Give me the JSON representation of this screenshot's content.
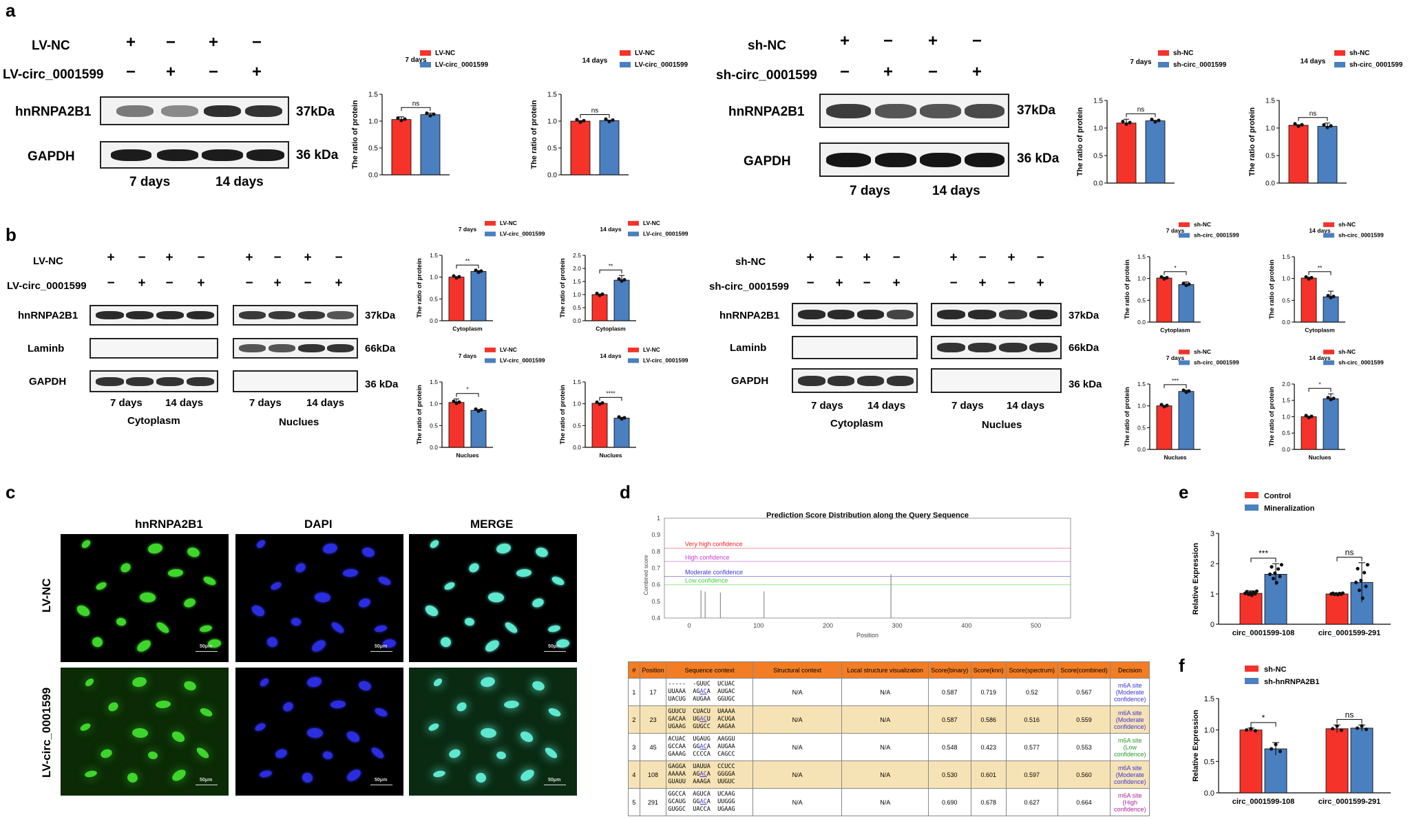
{
  "panels": {
    "a": "a",
    "b": "b",
    "c": "c",
    "d": "d",
    "e": "e",
    "f": "f"
  },
  "colors": {
    "red": "#f5332a",
    "blue": "#4a7fc0",
    "band_dark": "#1c1c1c"
  },
  "panel_a": {
    "left": {
      "row1": "LV-NC",
      "row2": "LV-circ_0001599",
      "row1_signs": [
        "+",
        "−",
        "+",
        "−"
      ],
      "row2_signs": [
        "−",
        "+",
        "−",
        "+"
      ],
      "blot1": "hnRNPA2B1",
      "blot1_kda": "37kDa",
      "blot2": "GAPDH",
      "blot2_kda": "36 kDa",
      "day1": "7 days",
      "day2": "14 days"
    },
    "right": {
      "row1": "sh-NC",
      "row2": "sh-circ_0001599",
      "row1_signs": [
        "+",
        "−",
        "+",
        "−"
      ],
      "row2_signs": [
        "−",
        "+",
        "−",
        "+"
      ],
      "blot1": "hnRNPA2B1",
      "blot1_kda": "37kDa",
      "blot2": "GAPDH",
      "blot2_kda": "36 kDa",
      "day1": "7 days",
      "day2": "14 days"
    }
  },
  "panel_b": {
    "left": {
      "row1": "LV-NC",
      "row2": "LV-circ_0001599",
      "row1_signs": [
        "+",
        "−",
        "+",
        "−",
        "+",
        "−",
        "+",
        "−"
      ],
      "row2_signs": [
        "−",
        "+",
        "−",
        "+",
        "−",
        "+",
        "−",
        "+"
      ],
      "blot1": "hnRNPA2B1",
      "blot1_kda": "37kDa",
      "blot2": "Laminb",
      "blot2_kda": "66kDa",
      "blot3": "GAPDH",
      "blot3_kda": "36 kDa",
      "day1": "7 days",
      "day2": "14 days",
      "day3": "7 days",
      "day4": "14 days",
      "frac1": "Cytoplasm",
      "frac2": "Nuclues"
    },
    "right": {
      "row1": "sh-NC",
      "row2": "sh-circ_0001599",
      "row1_signs": [
        "+",
        "−",
        "+",
        "−",
        "+",
        "−",
        "+",
        "−"
      ],
      "row2_signs": [
        "−",
        "+",
        "−",
        "+",
        "−",
        "+",
        "−",
        "+"
      ],
      "blot1": "hnRNPA2B1",
      "blot1_kda": "37kDa",
      "blot2": "Laminb",
      "blot2_kda": "66kDa",
      "blot3": "GAPDH",
      "blot3_kda": "36 kDa",
      "day1": "7 days",
      "day2": "14 days",
      "day3": "7 days",
      "day4": "14 days",
      "frac1": "Cytoplasm",
      "frac2": "Nuclues"
    }
  },
  "panel_c": {
    "cols": [
      "hnRNPA2B1",
      "DAPI",
      "MERGE"
    ],
    "rows": [
      "LV-NC",
      "LV-circ_0001599"
    ],
    "scale": "50μm"
  },
  "panel_d": {
    "title": "Prediction Score Distribution along the Query Sequence",
    "ylabel": "Combined score",
    "xlabel": "Position",
    "yticks": [
      "0.4",
      "0.5",
      "0.6",
      "0.7",
      "0.8",
      "0.9",
      "1"
    ],
    "xticks": [
      "0",
      "100",
      "200",
      "300",
      "400",
      "500"
    ],
    "thresholds": [
      {
        "label": "Very high confidence",
        "value": 0.82,
        "color": "#e8222a"
      },
      {
        "label": "High confidence",
        "value": 0.74,
        "color": "#c23cd6"
      },
      {
        "label": "Moderate confidence",
        "value": 0.65,
        "color": "#3d35d8"
      },
      {
        "label": "Low confidence",
        "value": 0.6,
        "color": "#3bd13b"
      }
    ],
    "bars": [
      {
        "x": 17,
        "y": 0.567
      },
      {
        "x": 23,
        "y": 0.559
      },
      {
        "x": 45,
        "y": 0.553
      },
      {
        "x": 108,
        "y": 0.56
      },
      {
        "x": 291,
        "y": 0.664
      }
    ],
    "table_headers": [
      "#",
      "Position",
      "Sequence context",
      "Structural context",
      "Local structure visualization",
      "Score(binary)",
      "Score(knn)",
      "Score(spectrum)",
      "Score(combined)",
      "Decision"
    ],
    "rows": [
      {
        "n": "1",
        "pos": "17",
        "s1": "-----  -GUUC  UCUAC",
        "s2a": "UUAAA  AG",
        "s2u": "A",
        "s2b": "CA  AUGAC",
        "s3": "UACUG  AUGAA  GGUGC",
        "sc": "N/A",
        "lsv": "N/A",
        "b": "0.587",
        "k": "0.719",
        "sp": "0.52",
        "c": "0.567",
        "d1": "m6A site",
        "d2": "(Moderate",
        "d3": "confidence)",
        "dcolor": "#3d35d8"
      },
      {
        "n": "2",
        "pos": "23",
        "s1": "GUUCU  CUACU  UAAAA",
        "s2a": "GACAA  UG",
        "s2u": "A",
        "s2b": "CU  ACUGA",
        "s3": "UGAAG  GUGCC  AAGAA",
        "sc": "N/A",
        "lsv": "N/A",
        "b": "0.587",
        "k": "0.586",
        "sp": "0.516",
        "c": "0.559",
        "d1": "m6A site",
        "d2": "(Moderate",
        "d3": "confidence)",
        "dcolor": "#3d35d8"
      },
      {
        "n": "3",
        "pos": "45",
        "s1": "ACUAC  UGAUG  AAGGU",
        "s2a": "GCCAA  GG",
        "s2u": "A",
        "s2b": "CA  AUGAA",
        "s3": "GAAAG  CCCCA  CAGCC",
        "sc": "N/A",
        "lsv": "N/A",
        "b": "0.548",
        "k": "0.423",
        "sp": "0.577",
        "c": "0.553",
        "d1": "m6A site (Low",
        "d2": "confidence)",
        "d3": "",
        "dcolor": "#2a9a2a"
      },
      {
        "n": "4",
        "pos": "108",
        "s1": "GAGGA  UAUUA  CCUCC",
        "s2a": "AAAAA  AG",
        "s2u": "A",
        "s2b": "CA  GGGGA",
        "s3": "GUAUU  AAAGA  UUGUC",
        "sc": "N/A",
        "lsv": "N/A",
        "b": "0.530",
        "k": "0.601",
        "sp": "0.597",
        "c": "0.560",
        "d1": "m6A site",
        "d2": "(Moderate",
        "d3": "confidence)",
        "dcolor": "#3d35d8"
      },
      {
        "n": "5",
        "pos": "291",
        "s1": "GGCCA  AGUCA  UCAAG",
        "s2a": "GCAUG  GG",
        "s2u": "A",
        "s2b": "CA  UUGGG",
        "s3": "GUGGC  UACCA  UGAAG",
        "sc": "N/A",
        "lsv": "N/A",
        "b": "0.690",
        "k": "0.678",
        "sp": "0.627",
        "c": "0.664",
        "d1": "m6A site (High",
        "d2": "confidence)",
        "d3": "",
        "dcolor": "#b0249e"
      }
    ]
  },
  "chart_data": [
    {
      "id": "a1",
      "type": "bar",
      "title": "7 days",
      "ylabel": "The ratio of protein",
      "ylim": [
        0,
        1.5
      ],
      "yticks": [
        "0.0",
        "0.5",
        "1.0",
        "1.5"
      ],
      "legend": [
        "LV-NC",
        "LV-circ_0001599"
      ],
      "values": [
        1.03,
        1.12
      ],
      "errors": [
        0.05,
        0.03
      ],
      "sig": "ns",
      "xlabel": ""
    },
    {
      "id": "a2",
      "type": "bar",
      "title": "14 days",
      "ylabel": "The ratio of protein",
      "ylim": [
        0,
        1.5
      ],
      "yticks": [
        "0.0",
        "0.5",
        "1.0",
        "1.5"
      ],
      "legend": [
        "LV-NC",
        "LV-circ_0001599"
      ],
      "values": [
        1.0,
        1.01
      ],
      "errors": [
        0.01,
        0.01
      ],
      "sig": "ns",
      "xlabel": ""
    },
    {
      "id": "a3",
      "type": "bar",
      "title": "7 days",
      "ylabel": "The ratio of protein",
      "ylim": [
        0,
        1.5
      ],
      "yticks": [
        "0.0",
        "0.5",
        "1.0",
        "1.5"
      ],
      "legend": [
        "sh-NC",
        "sh-circ_0001599"
      ],
      "values": [
        1.09,
        1.13
      ],
      "errors": [
        0.07,
        0.01
      ],
      "sig": "ns",
      "xlabel": ""
    },
    {
      "id": "a4",
      "type": "bar",
      "title": "14 days",
      "ylabel": "The ratio of protein",
      "ylim": [
        0,
        1.5
      ],
      "yticks": [
        "0.0",
        "0.5",
        "1.0",
        "1.5"
      ],
      "legend": [
        "sh-NC",
        "sh-circ_0001599"
      ],
      "values": [
        1.05,
        1.03
      ],
      "errors": [
        0.01,
        0.06
      ],
      "sig": "ns",
      "xlabel": ""
    },
    {
      "id": "b1",
      "type": "bar",
      "title": "7 days",
      "ylabel": "The ratio of protein",
      "ylim": [
        0,
        1.5
      ],
      "yticks": [
        "0.0",
        "0.5",
        "1.0",
        "1.5"
      ],
      "legend": [
        "LV-NC",
        "LV-circ_0001599"
      ],
      "values": [
        1.0,
        1.13
      ],
      "errors": [
        0.01,
        0.02
      ],
      "sig": "**",
      "xlabel": "Cytoplasm"
    },
    {
      "id": "b2",
      "type": "bar",
      "title": "14 days",
      "ylabel": "The ratio of protein",
      "ylim": [
        0,
        2.5
      ],
      "yticks": [
        "0.0",
        "0.5",
        "1.0",
        "1.5",
        "2.0",
        "2.5"
      ],
      "legend": [
        "LV-NC",
        "LV-circ_0001599"
      ],
      "values": [
        1.0,
        1.55
      ],
      "errors": [
        0.01,
        0.18
      ],
      "sig": "**",
      "xlabel": "Cytoplasm"
    },
    {
      "id": "b3",
      "type": "bar",
      "title": "7 days",
      "ylabel": "The ratio of protein",
      "ylim": [
        0,
        1.5
      ],
      "yticks": [
        "0.0",
        "0.5",
        "1.0",
        "1.5"
      ],
      "legend": [
        "LV-NC",
        "LV-circ_0001599"
      ],
      "values": [
        1.03,
        0.85
      ],
      "errors": [
        0.08,
        0.02
      ],
      "sig": "*",
      "xlabel": "Nuclues"
    },
    {
      "id": "b4",
      "type": "bar",
      "title": "14 days",
      "ylabel": "The ratio of protein",
      "ylim": [
        0,
        1.5
      ],
      "yticks": [
        "0.0",
        "0.5",
        "1.0",
        "1.5"
      ],
      "legend": [
        "LV-NC",
        "LV-circ_0001599"
      ],
      "values": [
        1.01,
        0.67
      ],
      "errors": [
        0.01,
        0.02
      ],
      "sig": "****",
      "xlabel": "Nuclues"
    },
    {
      "id": "b5",
      "type": "bar",
      "title": "7 days",
      "ylabel": "The ratio of protein",
      "ylim": [
        0,
        1.5
      ],
      "yticks": [
        "0.0",
        "0.5",
        "1.0",
        "1.5"
      ],
      "legend": [
        "sh-NC",
        "sh-circ_0001599"
      ],
      "values": [
        1.01,
        0.86
      ],
      "errors": [
        0.02,
        0.06
      ],
      "sig": "*",
      "xlabel": "Cytoplasm"
    },
    {
      "id": "b6",
      "type": "bar",
      "title": "14 days",
      "ylabel": "The ratio of protein",
      "ylim": [
        0,
        1.5
      ],
      "yticks": [
        "0.0",
        "0.5",
        "1.0",
        "1.5"
      ],
      "legend": [
        "sh-NC",
        "sh-circ_0001599"
      ],
      "values": [
        1.01,
        0.58
      ],
      "errors": [
        0.02,
        0.13
      ],
      "sig": "**",
      "xlabel": "Cytoplasm"
    },
    {
      "id": "b7",
      "type": "bar",
      "title": "7 days",
      "ylabel": "The ratio of protein",
      "ylim": [
        0,
        1.5
      ],
      "yticks": [
        "0.0",
        "0.5",
        "1.0",
        "1.5"
      ],
      "legend": [
        "sh-NC",
        "sh-circ_0001599"
      ],
      "values": [
        1.0,
        1.33
      ],
      "errors": [
        0.01,
        0.03
      ],
      "sig": "***",
      "xlabel": "Nuclues"
    },
    {
      "id": "b8",
      "type": "bar",
      "title": "14 days",
      "ylabel": "The ratio of protein",
      "ylim": [
        0,
        2.0
      ],
      "yticks": [
        "0.0",
        "0.5",
        "1.0",
        "1.5",
        "2.0"
      ],
      "legend": [
        "sh-NC",
        "sh-circ_0001599"
      ],
      "values": [
        1.0,
        1.55
      ],
      "errors": [
        0.01,
        0.15
      ],
      "sig": "*",
      "xlabel": "Nuclues"
    },
    {
      "id": "e",
      "type": "bar",
      "title": "",
      "ylabel": "Relative Expression",
      "ylim": [
        0,
        3
      ],
      "yticks": [
        "0",
        "1",
        "2",
        "3"
      ],
      "legend": [
        "Control",
        "Mineralization"
      ],
      "categories": [
        "circ_0001599-108",
        "circ_0001599-291"
      ],
      "series": [
        {
          "name": "Control",
          "values": [
            1.02,
            1.0
          ],
          "errors": [
            0.08,
            0.03
          ]
        },
        {
          "name": "Mineralization",
          "values": [
            1.65,
            1.38
          ],
          "errors": [
            0.35,
            0.65
          ]
        }
      ],
      "sig": [
        "***",
        "ns"
      ]
    },
    {
      "id": "f",
      "type": "bar",
      "title": "",
      "ylabel": "Relative Expression",
      "ylim": [
        0,
        1.5
      ],
      "yticks": [
        "0.0",
        "0.5",
        "1.0",
        "1.5"
      ],
      "legend": [
        "sh-NC",
        "sh-hnRNPA2B1"
      ],
      "categories": [
        "circ_0001599-108",
        "circ_0001599-291"
      ],
      "series": [
        {
          "name": "sh-NC",
          "values": [
            1.0,
            1.02
          ],
          "errors": [
            0.03,
            0.06
          ]
        },
        {
          "name": "sh-hnRNPA2B1",
          "values": [
            0.7,
            1.03
          ],
          "errors": [
            0.1,
            0.05
          ]
        }
      ],
      "sig": [
        "*",
        "ns"
      ]
    }
  ]
}
